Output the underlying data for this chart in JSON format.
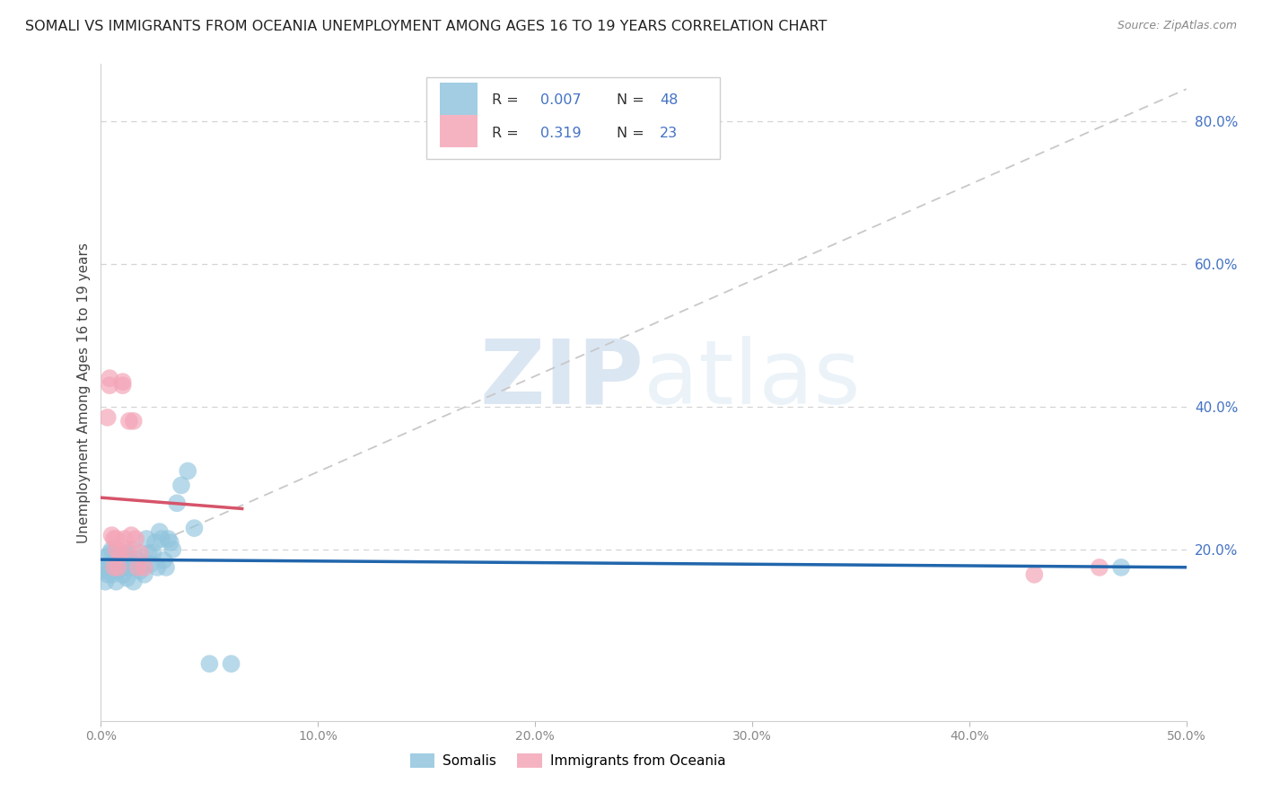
{
  "title": "SOMALI VS IMMIGRANTS FROM OCEANIA UNEMPLOYMENT AMONG AGES 16 TO 19 YEARS CORRELATION CHART",
  "source": "Source: ZipAtlas.com",
  "ylabel": "Unemployment Among Ages 16 to 19 years",
  "xlim": [
    0.0,
    0.5
  ],
  "ylim": [
    -0.04,
    0.88
  ],
  "somali_R": "0.007",
  "somali_N": "48",
  "oceania_R": "0.319",
  "oceania_N": "23",
  "somali_color": "#92c5de",
  "oceania_color": "#f4a6b8",
  "somali_line_color": "#2166ac",
  "oceania_line_color": "#d6546a",
  "dashed_line_color": "#c8c8c8",
  "background_color": "#ffffff",
  "grid_color": "#d4d4d4",
  "right_axis_color": "#4472c4",
  "somali_x": [
    0.0,
    0.001,
    0.002,
    0.003,
    0.003,
    0.004,
    0.004,
    0.005,
    0.005,
    0.006,
    0.007,
    0.007,
    0.008,
    0.009,
    0.01,
    0.01,
    0.011,
    0.012,
    0.012,
    0.013,
    0.014,
    0.015,
    0.015,
    0.016,
    0.017,
    0.018,
    0.019,
    0.02,
    0.021,
    0.022,
    0.023,
    0.024,
    0.025,
    0.026,
    0.027,
    0.028,
    0.029,
    0.03,
    0.031,
    0.032,
    0.033,
    0.035,
    0.037,
    0.04,
    0.043,
    0.05,
    0.06,
    0.47
  ],
  "somali_y": [
    0.17,
    0.175,
    0.155,
    0.19,
    0.165,
    0.18,
    0.195,
    0.165,
    0.2,
    0.17,
    0.155,
    0.2,
    0.17,
    0.185,
    0.165,
    0.195,
    0.175,
    0.16,
    0.195,
    0.185,
    0.175,
    0.155,
    0.2,
    0.175,
    0.185,
    0.17,
    0.18,
    0.165,
    0.215,
    0.195,
    0.18,
    0.195,
    0.21,
    0.175,
    0.225,
    0.215,
    0.185,
    0.175,
    0.215,
    0.21,
    0.2,
    0.265,
    0.29,
    0.31,
    0.23,
    0.04,
    0.04,
    0.175
  ],
  "oceania_x": [
    0.003,
    0.004,
    0.004,
    0.005,
    0.006,
    0.006,
    0.007,
    0.007,
    0.008,
    0.009,
    0.01,
    0.01,
    0.011,
    0.012,
    0.013,
    0.014,
    0.015,
    0.016,
    0.017,
    0.018,
    0.02,
    0.43,
    0.46
  ],
  "oceania_y": [
    0.385,
    0.43,
    0.44,
    0.22,
    0.175,
    0.215,
    0.2,
    0.215,
    0.175,
    0.195,
    0.43,
    0.435,
    0.215,
    0.2,
    0.38,
    0.22,
    0.38,
    0.215,
    0.175,
    0.195,
    0.175,
    0.165,
    0.175
  ],
  "watermark_zip": "ZIP",
  "watermark_atlas": "atlas",
  "xtick_labels": [
    "0.0%",
    "10.0%",
    "20.0%",
    "30.0%",
    "40.0%",
    "50.0%"
  ],
  "xtick_vals": [
    0.0,
    0.1,
    0.2,
    0.3,
    0.4,
    0.5
  ],
  "ytick_vals": [
    0.2,
    0.4,
    0.6,
    0.8
  ],
  "ytick_labels": [
    "20.0%",
    "40.0%",
    "60.0%",
    "80.0%"
  ]
}
